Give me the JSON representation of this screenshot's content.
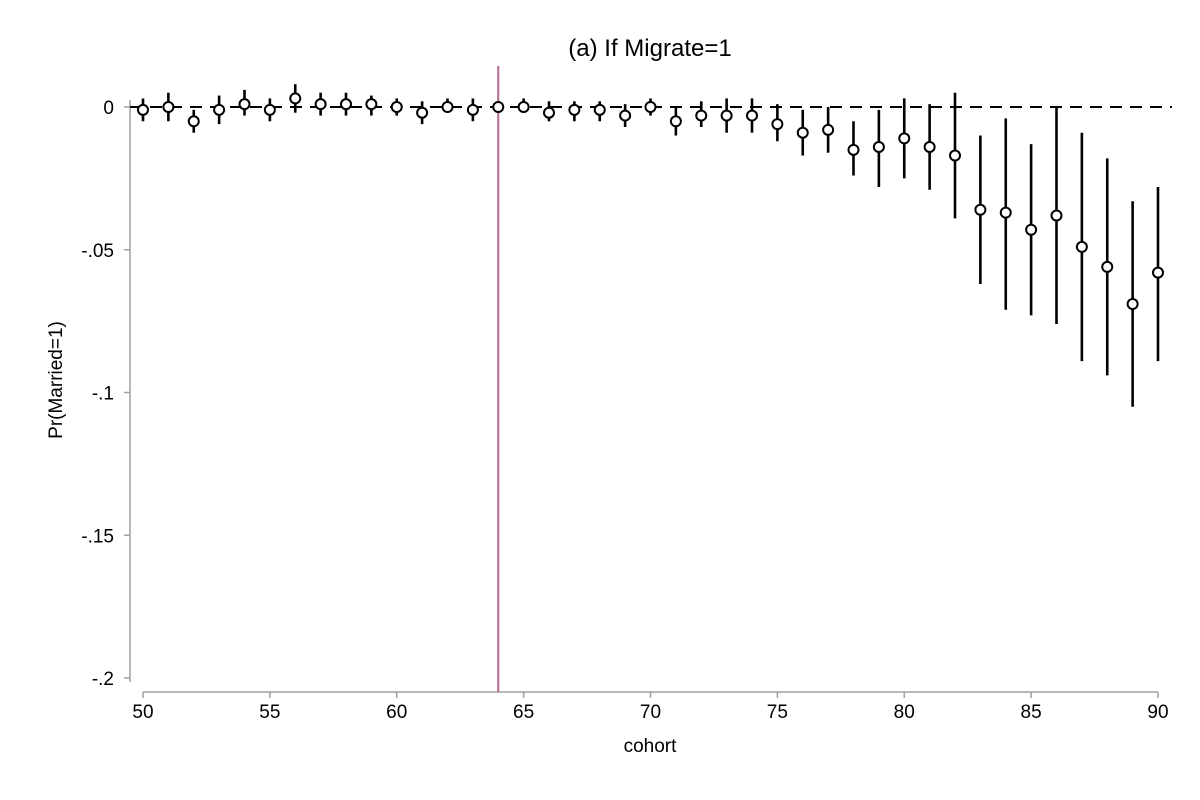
{
  "chart_data": {
    "type": "scatter",
    "title": "(a) If Migrate=1",
    "xlabel": "cohort",
    "ylabel": "Pr(Married=1)",
    "xlim": [
      50,
      90
    ],
    "ylim": [
      -0.2,
      0.0
    ],
    "x_ticks": [
      50,
      55,
      60,
      65,
      70,
      75,
      80,
      85,
      90
    ],
    "x_tick_labels": [
      "50",
      "55",
      "60",
      "65",
      "70",
      "75",
      "80",
      "85",
      "90"
    ],
    "y_ticks": [
      0,
      -0.05,
      -0.1,
      -0.15,
      -0.2
    ],
    "y_tick_labels": [
      "0",
      "-.05",
      "-.1",
      "-.15",
      "-.2"
    ],
    "reference_line_y": 0,
    "reference_line_style": "dashed",
    "vertical_line_x": 64,
    "vertical_line_color": "#b5698f",
    "marker": "hollow-circle",
    "grid": false,
    "points": [
      {
        "x": 50,
        "y": -0.001,
        "lo": -0.005,
        "hi": 0.003
      },
      {
        "x": 51,
        "y": 0.0,
        "lo": -0.005,
        "hi": 0.005
      },
      {
        "x": 52,
        "y": -0.005,
        "lo": -0.009,
        "hi": -0.001
      },
      {
        "x": 53,
        "y": -0.001,
        "lo": -0.006,
        "hi": 0.004
      },
      {
        "x": 54,
        "y": 0.001,
        "lo": -0.003,
        "hi": 0.006
      },
      {
        "x": 55,
        "y": -0.001,
        "lo": -0.005,
        "hi": 0.003
      },
      {
        "x": 56,
        "y": 0.003,
        "lo": -0.002,
        "hi": 0.008
      },
      {
        "x": 57,
        "y": 0.001,
        "lo": -0.003,
        "hi": 0.005
      },
      {
        "x": 58,
        "y": 0.001,
        "lo": -0.003,
        "hi": 0.005
      },
      {
        "x": 59,
        "y": 0.001,
        "lo": -0.003,
        "hi": 0.004
      },
      {
        "x": 60,
        "y": 0.0,
        "lo": -0.003,
        "hi": 0.003
      },
      {
        "x": 61,
        "y": -0.002,
        "lo": -0.006,
        "hi": 0.002
      },
      {
        "x": 62,
        "y": 0.0,
        "lo": -0.002,
        "hi": 0.003
      },
      {
        "x": 63,
        "y": -0.001,
        "lo": -0.005,
        "hi": 0.003
      },
      {
        "x": 64,
        "y": 0.0,
        "lo": 0.0,
        "hi": 0.0
      },
      {
        "x": 65,
        "y": 0.0,
        "lo": -0.002,
        "hi": 0.003
      },
      {
        "x": 66,
        "y": -0.002,
        "lo": -0.005,
        "hi": 0.002
      },
      {
        "x": 67,
        "y": -0.001,
        "lo": -0.005,
        "hi": 0.002
      },
      {
        "x": 68,
        "y": -0.001,
        "lo": -0.005,
        "hi": 0.002
      },
      {
        "x": 69,
        "y": -0.003,
        "lo": -0.007,
        "hi": 0.001
      },
      {
        "x": 70,
        "y": 0.0,
        "lo": -0.003,
        "hi": 0.003
      },
      {
        "x": 71,
        "y": -0.005,
        "lo": -0.01,
        "hi": 0.0
      },
      {
        "x": 72,
        "y": -0.003,
        "lo": -0.007,
        "hi": 0.002
      },
      {
        "x": 73,
        "y": -0.003,
        "lo": -0.009,
        "hi": 0.003
      },
      {
        "x": 74,
        "y": -0.003,
        "lo": -0.009,
        "hi": 0.003
      },
      {
        "x": 75,
        "y": -0.006,
        "lo": -0.012,
        "hi": 0.001
      },
      {
        "x": 76,
        "y": -0.009,
        "lo": -0.017,
        "hi": -0.001
      },
      {
        "x": 77,
        "y": -0.008,
        "lo": -0.016,
        "hi": 0.0
      },
      {
        "x": 78,
        "y": -0.015,
        "lo": -0.024,
        "hi": -0.005
      },
      {
        "x": 79,
        "y": -0.014,
        "lo": -0.028,
        "hi": -0.001
      },
      {
        "x": 80,
        "y": -0.011,
        "lo": -0.025,
        "hi": 0.003
      },
      {
        "x": 81,
        "y": -0.014,
        "lo": -0.029,
        "hi": 0.001
      },
      {
        "x": 82,
        "y": -0.017,
        "lo": -0.039,
        "hi": 0.005
      },
      {
        "x": 83,
        "y": -0.036,
        "lo": -0.062,
        "hi": -0.01
      },
      {
        "x": 84,
        "y": -0.037,
        "lo": -0.071,
        "hi": -0.004
      },
      {
        "x": 85,
        "y": -0.043,
        "lo": -0.073,
        "hi": -0.013
      },
      {
        "x": 86,
        "y": -0.038,
        "lo": -0.076,
        "hi": 0.0
      },
      {
        "x": 87,
        "y": -0.049,
        "lo": -0.089,
        "hi": -0.009
      },
      {
        "x": 88,
        "y": -0.056,
        "lo": -0.094,
        "hi": -0.018
      },
      {
        "x": 89,
        "y": -0.069,
        "lo": -0.105,
        "hi": -0.033
      },
      {
        "x": 90,
        "y": -0.058,
        "lo": -0.089,
        "hi": -0.028
      }
    ]
  }
}
